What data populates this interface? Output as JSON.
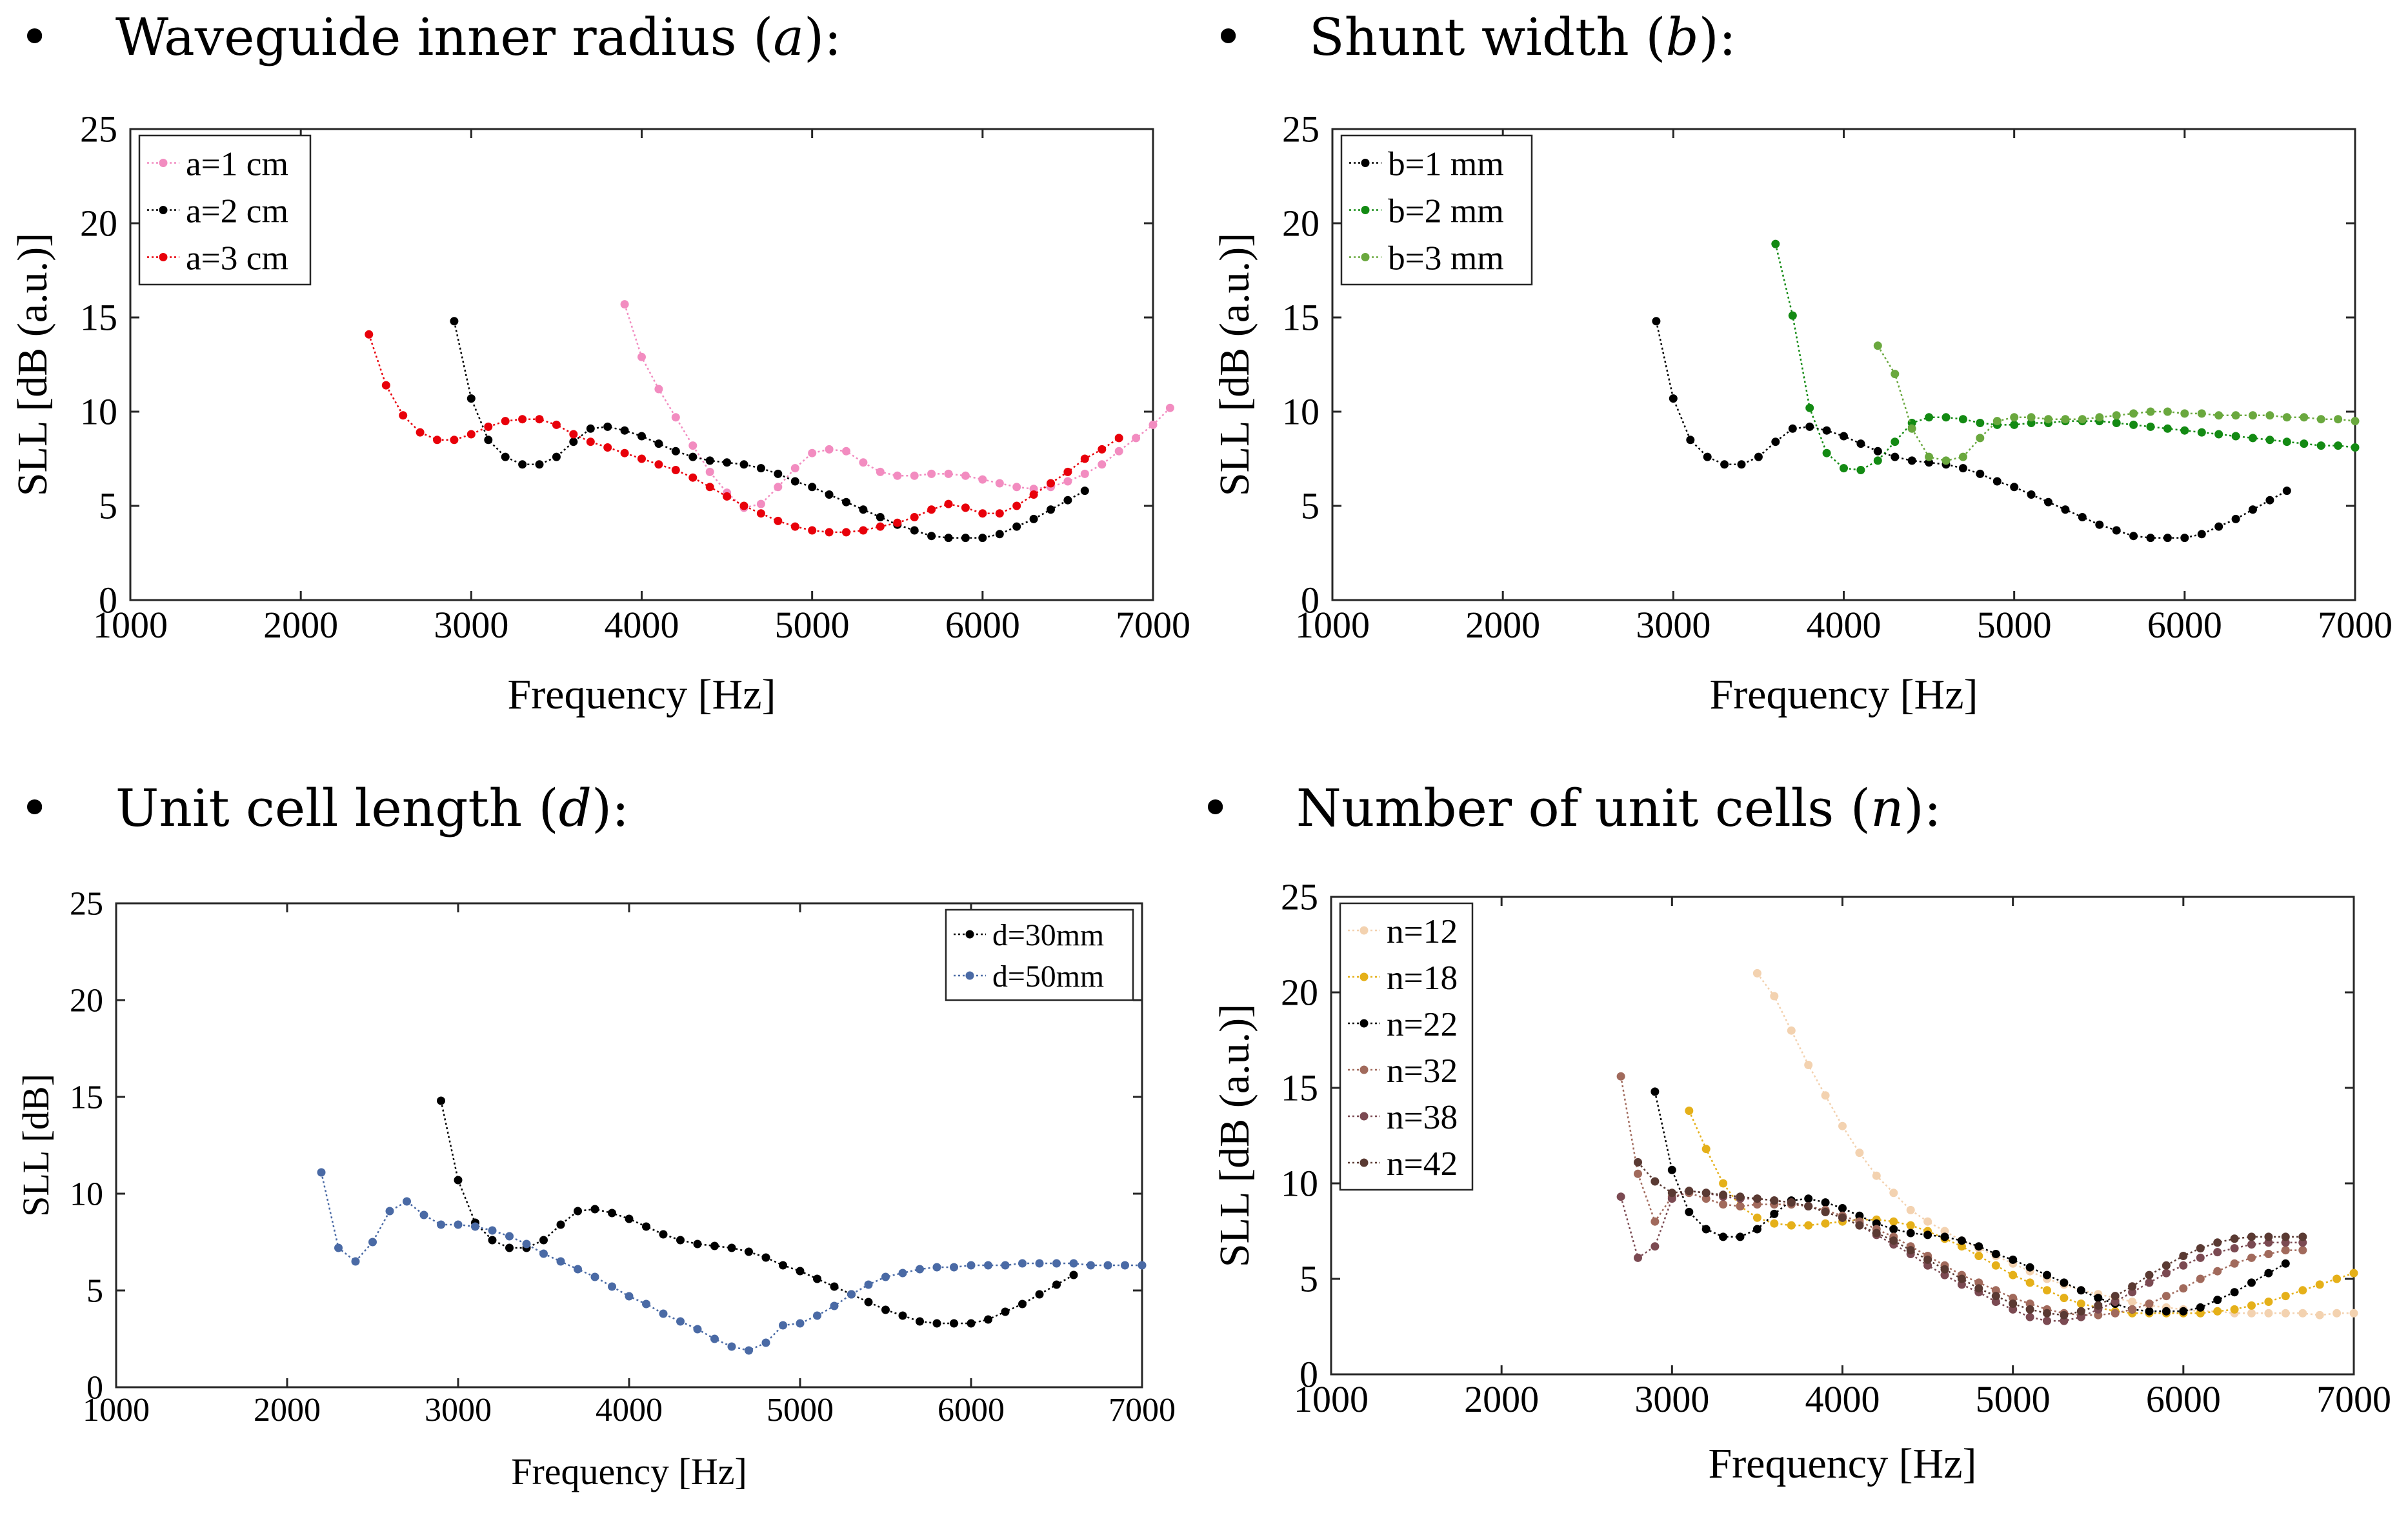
{
  "headings": [
    {
      "bullet": "•",
      "pre": "Waveguide inner radius (",
      "sym": "a",
      "post": "):"
    },
    {
      "bullet": "•",
      "pre": "Shunt width (",
      "sym": "b",
      "post": "):"
    },
    {
      "bullet": "•",
      "pre": "Unit cell length (",
      "sym": "d",
      "post": "):"
    },
    {
      "bullet": "•",
      "pre": "Number of unit cells (",
      "sym": "n",
      "post": "):"
    }
  ],
  "chart_data": [
    {
      "type": "line",
      "title": "Waveguide inner radius (a):",
      "xlabel": "Frequency [Hz]",
      "ylabel": "SLL [dB (a.u.)]",
      "xlim": [
        1000,
        7000
      ],
      "ylim": [
        0,
        25
      ],
      "xticks": [
        1000,
        2000,
        3000,
        4000,
        5000,
        6000,
        7000
      ],
      "yticks": [
        0,
        5,
        10,
        15,
        20,
        25
      ],
      "legend_position": "top-left",
      "series": [
        {
          "name": "a=1 cm",
          "color": "#f28cc0",
          "x_start": 3900,
          "x_step": 100,
          "values": [
            15.7,
            12.9,
            11.2,
            9.7,
            8.2,
            6.8,
            5.7,
            4.9,
            5.1,
            6.0,
            7.0,
            7.8,
            8.0,
            7.9,
            7.3,
            6.8,
            6.6,
            6.6,
            6.7,
            6.7,
            6.6,
            6.4,
            6.2,
            6.0,
            5.9,
            6.0,
            6.3,
            6.7,
            7.2,
            7.9,
            8.6,
            9.3,
            10.2
          ]
        },
        {
          "name": "a=2 cm",
          "color": "#000000",
          "x_start": 2900,
          "x_step": 100,
          "values": [
            14.8,
            10.7,
            8.5,
            7.6,
            7.2,
            7.2,
            7.6,
            8.4,
            9.1,
            9.2,
            9.0,
            8.7,
            8.3,
            7.9,
            7.6,
            7.4,
            7.3,
            7.2,
            7.0,
            6.7,
            6.3,
            6.0,
            5.6,
            5.2,
            4.8,
            4.4,
            4.0,
            3.7,
            3.4,
            3.3,
            3.3,
            3.3,
            3.5,
            3.9,
            4.3,
            4.8,
            5.3,
            5.8
          ]
        },
        {
          "name": "a=3 cm",
          "color": "#e8000a",
          "x_start": 2400,
          "x_step": 100,
          "values": [
            14.1,
            11.4,
            9.8,
            8.9,
            8.5,
            8.5,
            8.8,
            9.2,
            9.5,
            9.6,
            9.6,
            9.3,
            8.8,
            8.4,
            8.1,
            7.8,
            7.5,
            7.2,
            6.9,
            6.5,
            6.0,
            5.5,
            5.0,
            4.6,
            4.2,
            3.9,
            3.7,
            3.6,
            3.6,
            3.7,
            3.9,
            4.1,
            4.4,
            4.8,
            5.1,
            4.9,
            4.6,
            4.6,
            5.0,
            5.6,
            6.2,
            6.8,
            7.5,
            8.0,
            8.6
          ]
        }
      ]
    },
    {
      "type": "line",
      "title": "Shunt width (b):",
      "xlabel": "Frequency [Hz]",
      "ylabel": "SLL [dB (a.u.)]",
      "xlim": [
        1000,
        7000
      ],
      "ylim": [
        0,
        25
      ],
      "xticks": [
        1000,
        2000,
        3000,
        4000,
        5000,
        6000,
        7000
      ],
      "yticks": [
        0,
        5,
        10,
        15,
        20,
        25
      ],
      "legend_position": "top-left",
      "series": [
        {
          "name": "b=1 mm",
          "color": "#000000",
          "x_start": 2900,
          "x_step": 100,
          "values": [
            14.8,
            10.7,
            8.5,
            7.6,
            7.2,
            7.2,
            7.6,
            8.4,
            9.1,
            9.2,
            9.0,
            8.7,
            8.3,
            7.9,
            7.6,
            7.4,
            7.3,
            7.2,
            7.0,
            6.7,
            6.3,
            6.0,
            5.6,
            5.2,
            4.8,
            4.4,
            4.0,
            3.7,
            3.4,
            3.3,
            3.3,
            3.3,
            3.5,
            3.9,
            4.3,
            4.8,
            5.3,
            5.8
          ]
        },
        {
          "name": "b=2 mm",
          "color": "#138a13",
          "x_start": 3600,
          "x_step": 100,
          "values": [
            18.9,
            15.1,
            10.2,
            7.8,
            7.0,
            6.9,
            7.4,
            8.4,
            9.4,
            9.7,
            9.7,
            9.6,
            9.4,
            9.3,
            9.3,
            9.4,
            9.4,
            9.5,
            9.5,
            9.5,
            9.4,
            9.3,
            9.2,
            9.1,
            9.0,
            8.9,
            8.8,
            8.7,
            8.6,
            8.5,
            8.4,
            8.3,
            8.2,
            8.2,
            8.1
          ]
        },
        {
          "name": "b=3 mm",
          "color": "#6aa83e",
          "x_start": 4200,
          "x_step": 100,
          "values": [
            13.5,
            12.0,
            9.1,
            7.6,
            7.4,
            7.6,
            8.6,
            9.5,
            9.7,
            9.7,
            9.6,
            9.6,
            9.6,
            9.7,
            9.8,
            9.9,
            10.0,
            10.0,
            9.9,
            9.9,
            9.8,
            9.8,
            9.8,
            9.8,
            9.7,
            9.7,
            9.6,
            9.6,
            9.5
          ]
        }
      ]
    },
    {
      "type": "line",
      "title": "Unit cell length (d):",
      "xlabel": "Frequency [Hz]",
      "ylabel": "SLL [dB]",
      "xlim": [
        1000,
        7000
      ],
      "ylim": [
        0,
        25
      ],
      "xticks": [
        1000,
        2000,
        3000,
        4000,
        5000,
        6000,
        7000
      ],
      "yticks": [
        0,
        5,
        10,
        15,
        20,
        25
      ],
      "legend_position": "top-right",
      "series": [
        {
          "name": "d=30mm",
          "color": "#000000",
          "x_start": 2900,
          "x_step": 100,
          "values": [
            14.8,
            10.7,
            8.5,
            7.6,
            7.2,
            7.2,
            7.6,
            8.4,
            9.1,
            9.2,
            9.0,
            8.7,
            8.3,
            7.9,
            7.6,
            7.4,
            7.3,
            7.2,
            7.0,
            6.7,
            6.3,
            6.0,
            5.6,
            5.2,
            4.8,
            4.4,
            4.0,
            3.7,
            3.4,
            3.3,
            3.3,
            3.3,
            3.5,
            3.9,
            4.3,
            4.8,
            5.3,
            5.8
          ]
        },
        {
          "name": "d=50mm",
          "color": "#4a6aa5",
          "x_start": 2200,
          "x_step": 100,
          "values": [
            11.1,
            7.2,
            6.5,
            7.5,
            9.1,
            9.6,
            8.9,
            8.4,
            8.4,
            8.3,
            8.1,
            7.8,
            7.4,
            6.9,
            6.5,
            6.1,
            5.7,
            5.2,
            4.7,
            4.3,
            3.8,
            3.4,
            3.0,
            2.5,
            2.1,
            1.9,
            2.3,
            3.2,
            3.3,
            3.7,
            4.2,
            4.8,
            5.3,
            5.7,
            5.9,
            6.1,
            6.2,
            6.2,
            6.3,
            6.3,
            6.3,
            6.4,
            6.4,
            6.4,
            6.4,
            6.3,
            6.3,
            6.3,
            6.3
          ]
        }
      ]
    },
    {
      "type": "line",
      "title": "Number of unit cells (n):",
      "xlabel": "Frequency [Hz]",
      "ylabel": "SLL [dB (a.u.)]",
      "xlim": [
        1000,
        7000
      ],
      "ylim": [
        0,
        25
      ],
      "xticks": [
        1000,
        2000,
        3000,
        4000,
        5000,
        6000,
        7000
      ],
      "yticks": [
        0,
        5,
        10,
        15,
        20,
        25
      ],
      "legend_position": "top-left",
      "series": [
        {
          "name": "n=12",
          "color": "#f3d2b0",
          "x_start": 3500,
          "x_step": 100,
          "values": [
            21.0,
            19.8,
            18.0,
            16.2,
            14.6,
            13.0,
            11.6,
            10.4,
            9.5,
            8.6,
            8.0,
            7.5,
            7.0,
            6.6,
            6.2,
            5.8,
            5.4,
            5.0,
            4.7,
            4.4,
            4.2,
            4.0,
            3.8,
            3.6,
            3.5,
            3.4,
            3.3,
            3.3,
            3.2,
            3.2,
            3.2,
            3.2,
            3.2,
            3.1,
            3.2,
            3.2
          ]
        },
        {
          "name": "n=18",
          "color": "#e5b019",
          "x_start": 3100,
          "x_step": 100,
          "values": [
            13.8,
            11.8,
            10.0,
            8.8,
            8.2,
            7.9,
            7.8,
            7.8,
            7.9,
            8.0,
            8.1,
            8.1,
            8.0,
            7.8,
            7.5,
            7.1,
            6.7,
            6.2,
            5.7,
            5.2,
            4.8,
            4.4,
            4.0,
            3.7,
            3.5,
            3.3,
            3.2,
            3.2,
            3.2,
            3.2,
            3.2,
            3.3,
            3.4,
            3.6,
            3.8,
            4.1,
            4.4,
            4.7,
            5.0,
            5.3
          ]
        },
        {
          "name": "n=22",
          "color": "#000000",
          "x_start": 2900,
          "x_step": 100,
          "values": [
            14.8,
            10.7,
            8.5,
            7.6,
            7.2,
            7.2,
            7.6,
            8.4,
            9.1,
            9.2,
            9.0,
            8.7,
            8.3,
            7.9,
            7.6,
            7.4,
            7.3,
            7.2,
            7.0,
            6.7,
            6.3,
            6.0,
            5.6,
            5.2,
            4.8,
            4.4,
            4.0,
            3.7,
            3.4,
            3.3,
            3.3,
            3.3,
            3.5,
            3.9,
            4.3,
            4.8,
            5.3,
            5.8
          ]
        },
        {
          "name": "n=32",
          "color": "#a16a5c",
          "x_start": 2700,
          "x_step": 100,
          "values": [
            15.6,
            10.5,
            8.0,
            9.3,
            9.5,
            9.2,
            8.9,
            8.8,
            8.9,
            8.9,
            8.9,
            8.8,
            8.6,
            8.3,
            8.0,
            7.6,
            7.2,
            6.7,
            6.2,
            5.7,
            5.2,
            4.8,
            4.4,
            4.0,
            3.7,
            3.4,
            3.2,
            3.1,
            3.1,
            3.2,
            3.4,
            3.7,
            4.1,
            4.5,
            5.0,
            5.4,
            5.8,
            6.1,
            6.3,
            6.5,
            6.5
          ]
        },
        {
          "name": "n=38",
          "color": "#7b4a52",
          "x_start": 2700,
          "x_step": 100,
          "values": [
            9.3,
            6.1,
            6.7,
            9.2,
            9.6,
            9.5,
            9.3,
            9.2,
            9.2,
            9.1,
            9.0,
            8.8,
            8.5,
            8.2,
            7.8,
            7.3,
            6.8,
            6.3,
            5.7,
            5.2,
            4.7,
            4.3,
            3.8,
            3.4,
            3.0,
            2.8,
            2.8,
            3.0,
            3.4,
            3.8,
            4.3,
            4.8,
            5.3,
            5.7,
            6.1,
            6.4,
            6.6,
            6.8,
            6.9,
            6.9,
            6.9
          ]
        },
        {
          "name": "n=42",
          "color": "#5a3a33",
          "x_start": 2800,
          "x_step": 100,
          "values": [
            11.1,
            10.1,
            9.5,
            9.6,
            9.5,
            9.4,
            9.3,
            9.2,
            9.1,
            9.0,
            8.8,
            8.5,
            8.2,
            7.8,
            7.4,
            7.0,
            6.5,
            6.0,
            5.5,
            5.0,
            4.5,
            4.1,
            3.7,
            3.4,
            3.2,
            3.1,
            3.3,
            3.6,
            4.1,
            4.6,
            5.2,
            5.7,
            6.2,
            6.6,
            6.9,
            7.1,
            7.2,
            7.2,
            7.2,
            7.2
          ]
        }
      ]
    }
  ]
}
